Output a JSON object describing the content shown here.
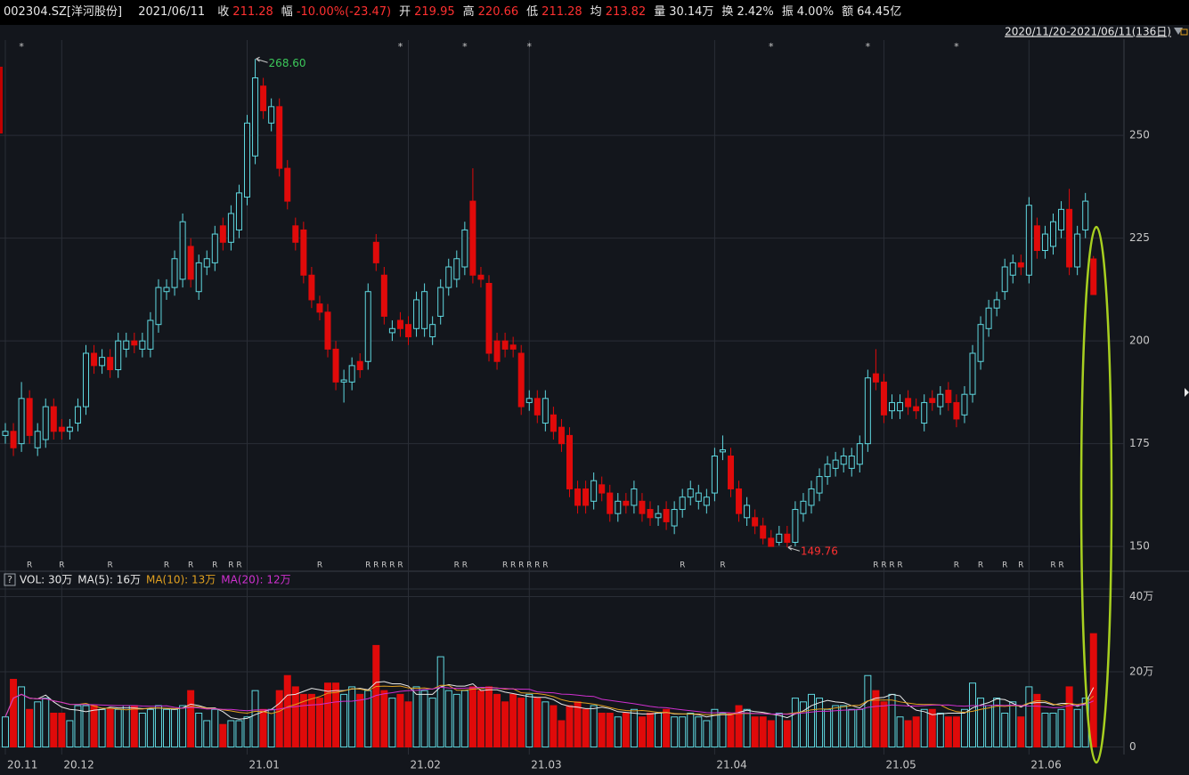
{
  "header": {
    "code": "002304.SZ[洋河股份]",
    "date": "2021/06/11",
    "items": [
      {
        "label": "收",
        "value": "211.28",
        "color": "#ff3030"
      },
      {
        "label": "幅",
        "value": "-10.00%(-23.47)",
        "color": "#ff3030"
      },
      {
        "label": "开",
        "value": "219.95",
        "color": "#ff3030"
      },
      {
        "label": "高",
        "value": "220.66",
        "color": "#ff3030"
      },
      {
        "label": "低",
        "value": "211.28",
        "color": "#ff3030"
      },
      {
        "label": "均",
        "value": "213.82",
        "color": "#ff3030"
      },
      {
        "label": "量",
        "value": "30.14万",
        "color": "#e8e8e8"
      },
      {
        "label": "换",
        "value": "2.42%",
        "color": "#e8e8e8"
      },
      {
        "label": "振",
        "value": "4.00%",
        "color": "#e8e8e8"
      },
      {
        "label": "额",
        "value": "64.45亿",
        "color": "#e8e8e8"
      }
    ],
    "range": "2020/11/20-2021/06/11(136日)"
  },
  "chart_data": [
    {
      "type": "candlestick",
      "up_color": "#5fd8e0",
      "down_color": "#e00a0a",
      "categories": [
        "20.11",
        null,
        null,
        null,
        null,
        null,
        null,
        "20.12",
        null,
        null,
        null,
        null,
        null,
        null,
        null,
        null,
        null,
        null,
        null,
        null,
        null,
        null,
        null,
        null,
        null,
        null,
        null,
        null,
        null,
        null,
        "21.01",
        null,
        null,
        null,
        null,
        null,
        null,
        null,
        null,
        null,
        null,
        null,
        null,
        null,
        null,
        null,
        null,
        null,
        null,
        null,
        "21.02",
        null,
        null,
        null,
        null,
        null,
        null,
        null,
        null,
        null,
        null,
        null,
        null,
        null,
        null,
        "21.03",
        null,
        null,
        null,
        null,
        null,
        null,
        null,
        null,
        null,
        null,
        null,
        null,
        null,
        null,
        null,
        null,
        null,
        null,
        null,
        null,
        null,
        null,
        "21.04",
        null,
        null,
        null,
        null,
        null,
        null,
        null,
        null,
        null,
        null,
        null,
        null,
        null,
        null,
        null,
        null,
        null,
        null,
        null,
        null,
        "21.05",
        null,
        null,
        null,
        null,
        null,
        null,
        null,
        null,
        null,
        null,
        null,
        null,
        null,
        null,
        null,
        null,
        null,
        "21.06",
        null,
        null,
        null,
        null,
        null,
        null,
        null,
        null
      ],
      "open": [
        177,
        178,
        175,
        186,
        174,
        176,
        184,
        179,
        178,
        180,
        184,
        197,
        194,
        196,
        193,
        198,
        200,
        198,
        198,
        204,
        212,
        213,
        215,
        223,
        212,
        218,
        219,
        228,
        224,
        227,
        235,
        245,
        262,
        253,
        257,
        242,
        228,
        227,
        216,
        209,
        207,
        198,
        190,
        190,
        195,
        195,
        224,
        216,
        202,
        205,
        204,
        203,
        203,
        201,
        206,
        213,
        215,
        218,
        234,
        216,
        214,
        200,
        200,
        199,
        197,
        185,
        186,
        180,
        182,
        179,
        177,
        164,
        164,
        161,
        165,
        163,
        158,
        161,
        160,
        161,
        159,
        157,
        159,
        155,
        159,
        162,
        161,
        160,
        163,
        173,
        172,
        164,
        157,
        157,
        155,
        152,
        151,
        153,
        151,
        158,
        160,
        163,
        167,
        169,
        170,
        169,
        170,
        175,
        192,
        190,
        183,
        183,
        186,
        184,
        180,
        186,
        184,
        188,
        185,
        182,
        187,
        195,
        203,
        208,
        212,
        216,
        219,
        216,
        228,
        222,
        223,
        227,
        232,
        218,
        227,
        219.95
      ],
      "high": [
        180,
        180,
        190,
        188,
        180,
        186,
        186,
        181,
        181,
        186,
        199,
        199,
        198,
        198,
        202,
        202,
        202,
        202,
        207,
        215,
        215,
        222,
        231,
        225,
        221,
        222,
        228,
        230,
        233,
        238,
        255,
        268.6,
        264,
        259,
        259,
        244,
        230,
        229,
        218,
        211,
        209,
        200,
        193,
        196,
        197,
        214,
        226,
        218,
        205,
        207,
        206,
        212,
        214,
        206,
        215,
        220,
        222,
        229,
        242,
        218,
        216,
        202,
        202,
        201,
        199,
        188,
        188,
        188,
        184,
        181,
        179,
        166,
        166,
        168,
        167,
        165,
        163,
        163,
        166,
        163,
        161,
        160,
        161,
        161,
        164,
        166,
        165,
        164,
        174,
        177,
        174,
        166,
        162,
        159,
        157,
        154,
        155,
        155,
        161,
        163,
        166,
        169,
        172,
        173,
        174,
        174,
        177,
        193,
        198,
        192,
        187,
        187,
        188,
        186,
        187,
        188,
        189,
        190,
        187,
        189,
        199,
        206,
        210,
        212,
        220,
        221,
        221,
        235,
        230,
        228,
        231,
        234,
        237,
        228,
        236,
        220.66
      ],
      "low": [
        175,
        172,
        173,
        175,
        172,
        174,
        176,
        176,
        176,
        178,
        182,
        192,
        192,
        191,
        191,
        196,
        197,
        196,
        196,
        202,
        210,
        211,
        213,
        213,
        210,
        216,
        217,
        222,
        222,
        225,
        233,
        243,
        254,
        251,
        240,
        232,
        222,
        214,
        208,
        205,
        196,
        188,
        185,
        188,
        191,
        193,
        217,
        204,
        200,
        201,
        199,
        201,
        201,
        199,
        204,
        211,
        213,
        216,
        214,
        213,
        195,
        193,
        196,
        196,
        182,
        183,
        180,
        178,
        176,
        173,
        162,
        158,
        158,
        159,
        161,
        156,
        156,
        158,
        158,
        156,
        155,
        155,
        154,
        153,
        157,
        160,
        159,
        158,
        161,
        171,
        162,
        156,
        155,
        153,
        150.5,
        150,
        150.2,
        149.76,
        150,
        156,
        158,
        161,
        165,
        167,
        168,
        167,
        168,
        173,
        188,
        180,
        181,
        181,
        182,
        181,
        178,
        183,
        182,
        183,
        179,
        180,
        185,
        193,
        201,
        206,
        210,
        214,
        216,
        214,
        220,
        220,
        221,
        225,
        216,
        216,
        225,
        211.28
      ],
      "close": [
        178,
        174,
        186,
        177,
        178,
        184,
        178,
        178,
        179,
        184,
        197,
        194,
        196,
        193,
        200,
        200,
        199,
        200,
        205,
        213,
        213,
        220,
        229,
        215,
        219,
        220,
        226,
        224,
        231,
        236,
        253,
        264,
        256,
        257,
        242,
        234,
        224,
        216,
        210,
        207,
        198,
        190,
        190.5,
        194,
        193,
        212,
        219,
        206,
        203,
        203,
        201,
        210,
        212,
        204,
        213,
        218,
        220,
        227,
        216,
        215,
        197,
        195,
        198,
        198,
        184,
        186,
        182,
        186,
        178,
        175,
        164,
        160,
        160,
        166,
        163,
        158,
        161,
        160,
        164,
        158,
        157,
        158,
        156,
        159,
        162,
        164,
        163,
        162,
        172,
        173.5,
        164,
        158,
        160,
        155,
        152,
        150,
        153,
        151,
        159,
        161,
        164,
        167,
        170,
        171,
        172,
        172,
        175,
        191,
        190,
        182,
        185,
        185,
        184,
        183,
        185,
        185,
        187,
        185,
        181,
        187,
        197,
        204,
        208,
        210,
        218,
        219,
        218,
        233,
        222,
        226,
        229,
        232,
        218,
        226,
        234,
        211.28
      ],
      "ylim": [
        144.4,
        273.2
      ],
      "yticks": [
        150,
        175,
        200,
        225,
        250
      ],
      "annotations": [
        {
          "text": "268.60",
          "index": 31,
          "at": "high",
          "color": "#3cc85a"
        },
        {
          "text": "149.76",
          "index": 97,
          "at": "low",
          "color": "#ff3030"
        }
      ],
      "star_markers": {
        "label": "*",
        "indices": [
          2,
          49,
          57,
          65,
          95,
          107,
          118
        ]
      },
      "r_markers": {
        "label": "R",
        "indices": [
          3,
          7,
          13,
          20,
          23,
          26,
          28,
          29,
          39,
          45,
          46,
          47,
          48,
          49,
          56,
          57,
          62,
          63,
          64,
          65,
          66,
          67,
          84,
          89,
          108,
          109,
          110,
          111,
          118,
          121,
          124,
          126,
          130,
          131
        ]
      }
    },
    {
      "type": "bar",
      "help": "?",
      "legend": [
        {
          "text": "VOL: 30万",
          "color": "#e8e8e8"
        },
        {
          "text": "MA(5): 16万",
          "color": "#e8e8e8"
        },
        {
          "text": "MA(10): 13万",
          "color": "#e0a020"
        },
        {
          "text": "MA(20): 12万",
          "color": "#d030d0"
        }
      ],
      "values": [
        8,
        18,
        16,
        10,
        12,
        13,
        9,
        9,
        7,
        11,
        11,
        11,
        10,
        10,
        10,
        11,
        11,
        9,
        10,
        11,
        10,
        10,
        11,
        15,
        9,
        7,
        10,
        6,
        7,
        7,
        8,
        15,
        10,
        10,
        15,
        19,
        16,
        14,
        14,
        13,
        17,
        17,
        14,
        16,
        14,
        15,
        27,
        15,
        13,
        14,
        12,
        16,
        15,
        13,
        24,
        15,
        14,
        15,
        16,
        15,
        16,
        14,
        12,
        14,
        13,
        14,
        13,
        12,
        11,
        7,
        11,
        12,
        10,
        11,
        9,
        9,
        8,
        9,
        10,
        8,
        9,
        9,
        10,
        8,
        8,
        9,
        8,
        7,
        10,
        9,
        9,
        11,
        10,
        8,
        8,
        7,
        9,
        7,
        13,
        12,
        14,
        13,
        10,
        11,
        11,
        10,
        10,
        19,
        15,
        12,
        14,
        8,
        7,
        8,
        10,
        10,
        9,
        8,
        8,
        10,
        17,
        13,
        11,
        13,
        9,
        12,
        8,
        16,
        14,
        9,
        9,
        10,
        16,
        10,
        13,
        30.14
      ],
      "ylim": [
        -2,
        42
      ],
      "yticks": [
        0,
        {
          "value": 20,
          "label": "20万"
        },
        {
          "value": 40,
          "label": "40万"
        }
      ]
    }
  ]
}
